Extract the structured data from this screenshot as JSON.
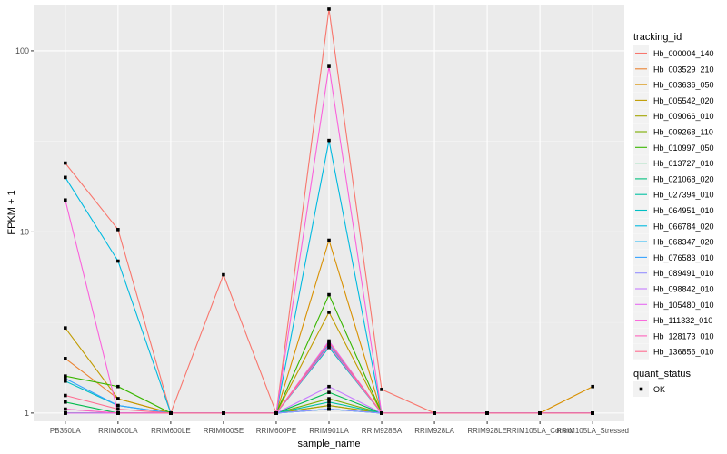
{
  "chart_data": {
    "type": "line",
    "xlabel": "sample_name",
    "ylabel": "FPKM + 1",
    "y_scale": "log10",
    "ylim": [
      0.9,
      180
    ],
    "y_ticks": [
      1,
      10,
      100
    ],
    "y_tick_labels": [
      "1",
      "10",
      "100"
    ],
    "grid": true,
    "legend_position": "right",
    "categories": [
      "PB350LA",
      "RRIM600LA",
      "RRIM600LE",
      "RRIM600SE",
      "RRIM600PE",
      "RRIM901LA",
      "RRIM928BA",
      "RRIM928LA",
      "RRIM928LE",
      "RRIM105LA_Control",
      "RRIM105LA_Stressed"
    ],
    "category_labels": [
      "PB350LA",
      "RRIM600LA",
      "RRIM600LE",
      "RRIM600SE",
      "RRIM600PE",
      "RRIM901LA",
      "RRIM928BA",
      "RRIM928LA",
      "RRIM928LE",
      "RRIM105LA_Control",
      "RRIM105LA_Stressed"
    ],
    "legend_title": "tracking_id",
    "shape_legend_title": "quant_status",
    "shape_legend_items": [
      "OK"
    ],
    "series": [
      {
        "name": "Hb_000004_140",
        "color": "#F8766D",
        "values": [
          24,
          10.3,
          1,
          5.8,
          1,
          170,
          1.35,
          1,
          1,
          1,
          1
        ]
      },
      {
        "name": "Hb_003529_210",
        "color": "#EA8331",
        "values": [
          2.0,
          1.2,
          1,
          1,
          1,
          1.1,
          1,
          1,
          1,
          1,
          1
        ]
      },
      {
        "name": "Hb_003636_050",
        "color": "#D89000",
        "values": [
          1.0,
          1.0,
          1,
          1,
          1,
          9.0,
          1,
          1,
          1,
          1,
          1.4
        ]
      },
      {
        "name": "Hb_005542_020",
        "color": "#C09B00",
        "values": [
          2.95,
          1.2,
          1,
          1,
          1,
          3.6,
          1,
          1,
          1,
          1,
          1
        ]
      },
      {
        "name": "Hb_009066_010",
        "color": "#A3A500",
        "values": [
          1.0,
          1.0,
          1,
          1,
          1,
          1.1,
          1,
          1,
          1,
          1,
          1
        ]
      },
      {
        "name": "Hb_009268_110",
        "color": "#7CAE00",
        "values": [
          1.0,
          1.0,
          1,
          1,
          1,
          1.2,
          1,
          1,
          1,
          1,
          1
        ]
      },
      {
        "name": "Hb_010997_050",
        "color": "#39B600",
        "values": [
          1.6,
          1.4,
          1,
          1,
          1,
          4.5,
          1,
          1,
          1,
          1,
          1
        ]
      },
      {
        "name": "Hb_013727_010",
        "color": "#00BB4E",
        "values": [
          1.15,
          1.0,
          1,
          1,
          1,
          1.3,
          1,
          1,
          1,
          1,
          1
        ]
      },
      {
        "name": "Hb_021068_020",
        "color": "#00BF7D",
        "values": [
          1.0,
          1.0,
          1,
          1,
          1,
          1.05,
          1,
          1,
          1,
          1,
          1
        ]
      },
      {
        "name": "Hb_027394_010",
        "color": "#00C1A3",
        "values": [
          1.0,
          1.0,
          1,
          1,
          1,
          1.15,
          1,
          1,
          1,
          1,
          1
        ]
      },
      {
        "name": "Hb_064951_010",
        "color": "#00BFC4",
        "values": [
          1.5,
          1.1,
          1,
          1,
          1,
          2.3,
          1,
          1,
          1,
          1,
          1
        ]
      },
      {
        "name": "Hb_066784_020",
        "color": "#00BAE0",
        "values": [
          20,
          6.9,
          1,
          1,
          1,
          32,
          1,
          1,
          1,
          1,
          1
        ]
      },
      {
        "name": "Hb_068347_020",
        "color": "#00B0F6",
        "values": [
          1.0,
          1.0,
          1,
          1,
          1,
          1.05,
          1,
          1,
          1,
          1,
          1
        ]
      },
      {
        "name": "Hb_076583_010",
        "color": "#35A2FF",
        "values": [
          1.55,
          1.1,
          1,
          1,
          1,
          2.4,
          1,
          1,
          1,
          1,
          1
        ]
      },
      {
        "name": "Hb_089491_010",
        "color": "#9590FF",
        "values": [
          1.0,
          1.0,
          1,
          1,
          1,
          1.05,
          1,
          1,
          1,
          1,
          1
        ]
      },
      {
        "name": "Hb_098842_010",
        "color": "#C77CFF",
        "values": [
          1.05,
          1.0,
          1,
          1,
          1,
          1.4,
          1,
          1,
          1,
          1,
          1
        ]
      },
      {
        "name": "Hb_105480_010",
        "color": "#E76BF3",
        "values": [
          1.0,
          1.0,
          1,
          1,
          1,
          2.5,
          1,
          1,
          1,
          1,
          1
        ]
      },
      {
        "name": "Hb_111332_010",
        "color": "#FA62DB",
        "values": [
          15,
          1.0,
          1,
          1,
          1,
          82,
          1,
          1,
          1,
          1,
          1
        ]
      },
      {
        "name": "Hb_128173_010",
        "color": "#FF62BC",
        "values": [
          1.05,
          1.0,
          1,
          1,
          1,
          2.35,
          1,
          1,
          1,
          1,
          1
        ]
      },
      {
        "name": "Hb_136856_010",
        "color": "#FF6C91",
        "values": [
          1.25,
          1.05,
          1,
          1,
          1,
          2.45,
          1,
          1,
          1,
          1,
          1
        ]
      }
    ]
  }
}
